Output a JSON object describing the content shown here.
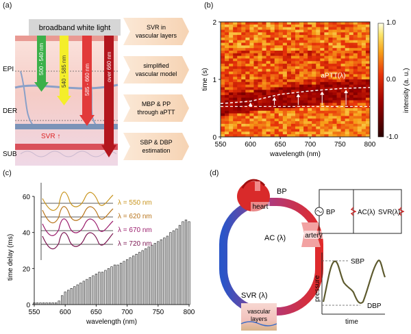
{
  "panel_a": {
    "label": "(a)",
    "header": "broadband white light",
    "layers": [
      "EPI",
      "DER",
      "SUB"
    ],
    "wavelength_bands": [
      "500 - 540 nm",
      "540 - 585 nm",
      "585 - 660 nm",
      "over 660 nm"
    ],
    "svr_label": "SVR ↑",
    "steps": [
      "SVR in vascular layers",
      "simplified vascular model",
      "MBP & PP through aPTT",
      "SBP & DBP estimation"
    ],
    "colors": {
      "green": "#3cb04a",
      "yellow": "#f4ee2a",
      "red": "#e23a3a",
      "darkred": "#b3161e",
      "arrow": "#f8dcc0"
    }
  },
  "panel_b": {
    "label": "(b)",
    "annotation": "aPTT(λ)",
    "colorbar_label": "intensity (a. u.)",
    "colorbar_ticks": [
      "1.0",
      "0.0",
      "-1.0"
    ]
  },
  "panel_c": {
    "label": "(c)",
    "legend": [
      {
        "text": "λ = 550 nm",
        "color": "#c8941c"
      },
      {
        "text": "λ = 620 nm",
        "color": "#b8741a"
      },
      {
        "text": "λ = 670 nm",
        "color": "#9a1b6b"
      },
      {
        "text": "λ = 720 nm",
        "color": "#7a1450"
      }
    ]
  },
  "panel_d": {
    "label": "(d)",
    "heart": "heart",
    "bp": "BP",
    "ac": "AC (λ)",
    "artery": "artery",
    "svr": "SVR (λ)",
    "vascular": "vascular",
    "layers": "layers",
    "circuit": {
      "bp": "BP",
      "ac": "AC(λ)",
      "svr": "SVR(λ)"
    },
    "waveform": {
      "ylabel": "pressure",
      "xlabel": "time",
      "sbp": "SBP",
      "dbp": "DBP"
    }
  },
  "chart_data": [
    {
      "type": "heatmap",
      "title": "",
      "xlabel": "wavelength (nm)",
      "ylabel": "time (s)",
      "xlim": [
        550,
        800
      ],
      "ylim": [
        0,
        2
      ],
      "xticks": [
        550,
        600,
        650,
        700,
        750,
        800
      ],
      "yticks": [
        0,
        1,
        2
      ],
      "color_range": [
        -1.0,
        1.0
      ],
      "aptt_curve": {
        "x": [
          550,
          600,
          650,
          700,
          750,
          800
        ],
        "y": [
          0.58,
          0.62,
          0.74,
          0.8,
          0.84,
          0.86
        ]
      },
      "baseline_time": 0.53
    },
    {
      "type": "bar",
      "title": "",
      "xlabel": "wavelength (nm)",
      "ylabel": "time delay (ms)",
      "xlim": [
        550,
        800
      ],
      "ylim": [
        0,
        60
      ],
      "xticks": [
        550,
        600,
        650,
        700,
        750,
        800
      ],
      "yticks": [
        0,
        20,
        40,
        60
      ],
      "x": [
        550,
        555,
        560,
        565,
        570,
        575,
        580,
        585,
        590,
        595,
        600,
        605,
        610,
        615,
        620,
        625,
        630,
        635,
        640,
        645,
        650,
        655,
        660,
        665,
        670,
        675,
        680,
        685,
        690,
        695,
        700,
        705,
        710,
        715,
        720,
        725,
        730,
        735,
        740,
        745,
        750,
        755,
        760,
        765,
        770,
        775,
        780,
        785,
        790,
        795,
        800
      ],
      "values": [
        1,
        1,
        1,
        1,
        1,
        1,
        1,
        1,
        2,
        5,
        7,
        8,
        9,
        10,
        11,
        12,
        13,
        14,
        15,
        16,
        17,
        18,
        18,
        19,
        20,
        21,
        22,
        22,
        23,
        24,
        25,
        26,
        27,
        28,
        29,
        30,
        31,
        32,
        33,
        34,
        35,
        36,
        37,
        38,
        40,
        41,
        42,
        44,
        46,
        47,
        46
      ]
    }
  ]
}
